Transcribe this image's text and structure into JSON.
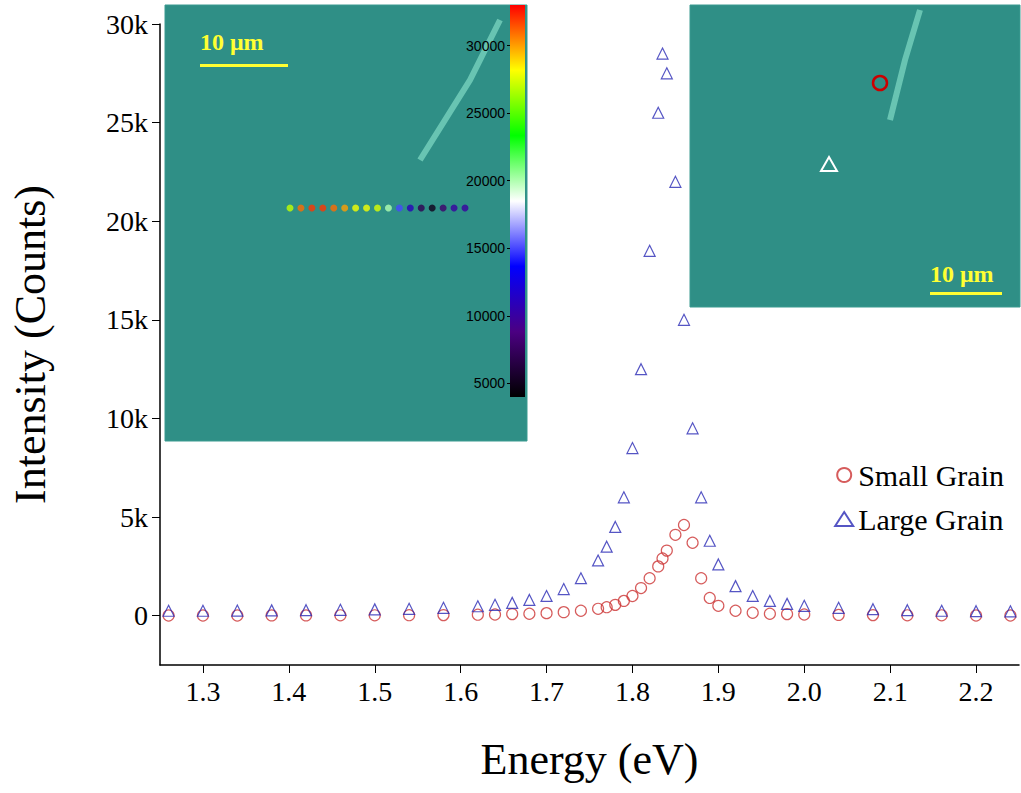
{
  "chart_data": {
    "type": "scatter",
    "xlabel": "Energy (eV)",
    "ylabel": "Intensity (Counts)",
    "x": [
      1.26,
      1.3,
      1.34,
      1.38,
      1.42,
      1.46,
      1.5,
      1.54,
      1.58,
      1.62,
      1.64,
      1.66,
      1.68,
      1.7,
      1.72,
      1.74,
      1.76,
      1.77,
      1.78,
      1.79,
      1.8,
      1.81,
      1.82,
      1.83,
      1.835,
      1.84,
      1.85,
      1.86,
      1.87,
      1.88,
      1.89,
      1.9,
      1.92,
      1.94,
      1.96,
      1.98,
      2.0,
      2.04,
      2.08,
      2.12,
      2.16,
      2.2,
      2.24
    ],
    "series": [
      {
        "name": "Small Grain",
        "color": "#cc3333",
        "marker": "circle",
        "values": [
          10,
          10,
          10,
          15,
          15,
          20,
          20,
          25,
          30,
          50,
          60,
          80,
          100,
          130,
          180,
          250,
          350,
          430,
          550,
          750,
          1000,
          1400,
          1900,
          2500,
          2900,
          3300,
          4100,
          4600,
          3700,
          1900,
          900,
          500,
          250,
          150,
          100,
          80,
          60,
          40,
          30,
          20,
          20,
          10,
          10
        ]
      },
      {
        "name": "Large Grain",
        "color": "#2b2bb5",
        "marker": "triangle",
        "values": [
          250,
          250,
          260,
          270,
          280,
          300,
          320,
          350,
          400,
          480,
          550,
          650,
          800,
          1000,
          1350,
          1900,
          2800,
          3500,
          4500,
          6000,
          8500,
          12500,
          18500,
          25500,
          28500,
          27500,
          22000,
          15000,
          9500,
          6000,
          3800,
          2600,
          1500,
          1000,
          750,
          600,
          500,
          400,
          330,
          280,
          250,
          230,
          220
        ]
      }
    ],
    "xlim": [
      1.25,
      2.25
    ],
    "xticks": [
      1.3,
      1.4,
      1.5,
      1.6,
      1.7,
      1.8,
      1.9,
      {
        "value": 2,
        "label": "2.0"
      },
      2.1,
      2.2
    ],
    "ylim": [
      -2500,
      30000
    ],
    "yticks": [
      0,
      {
        "value": 5000,
        "label": "5k"
      },
      {
        "value": 10000,
        "label": "10k"
      },
      {
        "value": 15000,
        "label": "15k"
      },
      {
        "value": 20000,
        "label": "20k"
      },
      {
        "value": 25000,
        "label": "25k"
      },
      {
        "value": 30000,
        "label": "30k"
      }
    ],
    "grid": false,
    "legend": "right",
    "insets": [
      {
        "scale_bar": "10 μm",
        "colorbar": {
          "range": [
            4000,
            33000
          ],
          "ticks": [
            5000,
            10000,
            15000,
            20000,
            25000,
            30000
          ]
        },
        "line_profile": [
          27000,
          31000,
          32000,
          32000,
          31000,
          30000,
          28000,
          28000,
          27500,
          20000,
          15000,
          11000,
          7000,
          5000,
          8000,
          10000,
          10000
        ]
      },
      {
        "scale_bar": "10 μm"
      }
    ]
  }
}
